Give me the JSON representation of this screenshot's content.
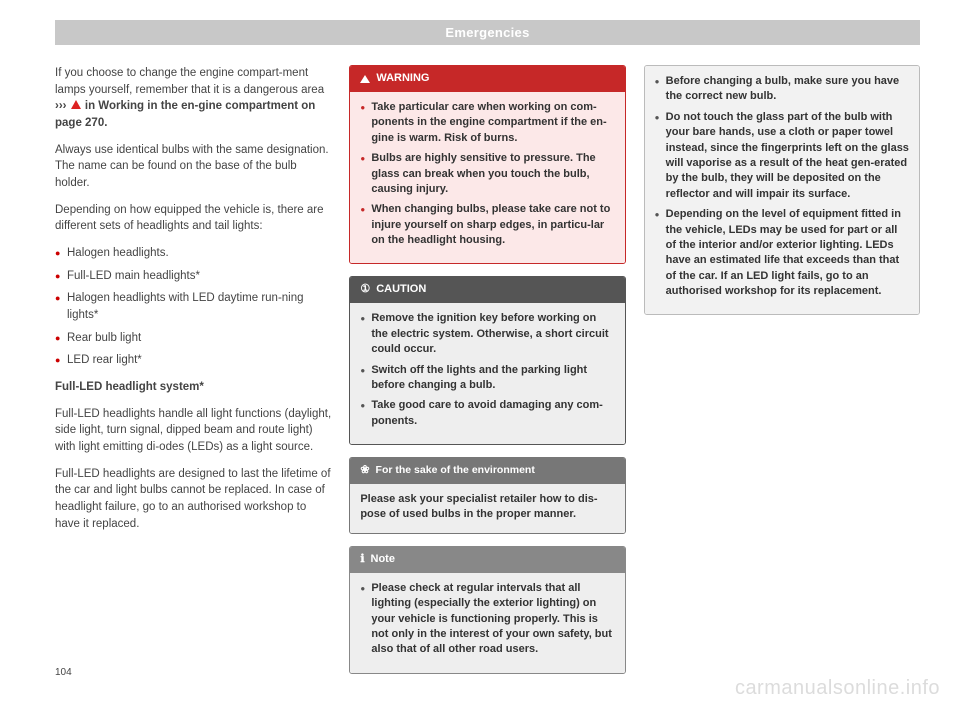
{
  "header": "Emergencies",
  "pageNumber": "104",
  "watermark": "carmanualsonline.info",
  "col1": {
    "para1a": "If you choose to change the engine compart-ment lamps yourself, remember that it is a dangerous area ",
    "para1b": "››› ",
    "para1c": " in Working in the en-gine compartment on page 270.",
    "para2": "Always use identical bulbs with the same designation. The name can be found on the base of the bulb holder.",
    "para3": "Depending on how equipped the vehicle is, there are different sets of headlights and tail lights:",
    "bullets": [
      "Halogen headlights.",
      "Full-LED main headlights*",
      "Halogen headlights with LED daytime run-ning lights*",
      "Rear bulb light",
      "LED rear light*"
    ],
    "subheading": "Full-LED headlight system*",
    "para4": "Full-LED headlights handle all light functions (daylight, side light, turn signal, dipped beam and route light) with light emitting di-odes (LEDs) as a light source.",
    "para5": "Full-LED headlights are designed to last the lifetime of the car and light bulbs cannot be replaced. In case of headlight failure, go to an authorised workshop to have it replaced."
  },
  "col2": {
    "warning": {
      "title": "WARNING",
      "items": [
        "Take particular care when working on com-ponents in the engine compartment if the en-gine is warm. Risk of burns.",
        "Bulbs are highly sensitive to pressure. The glass can break when you touch the bulb, causing injury.",
        "When changing bulbs, please take care not to injure yourself on sharp edges, in particu-lar on the headlight housing."
      ]
    },
    "caution": {
      "title": "CAUTION",
      "icon": "①",
      "items": [
        "Remove the ignition key before working on the electric system. Otherwise, a short circuit could occur.",
        "Switch off the lights and the parking light before changing a bulb.",
        "Take good care to avoid damaging any com-ponents."
      ]
    },
    "env": {
      "title": "For the sake of the environment",
      "icon": "❀",
      "text": "Please ask your specialist retailer how to dis-pose of used bulbs in the proper manner."
    },
    "note": {
      "title": "Note",
      "icon": "ℹ",
      "items": [
        "Please check at regular intervals that all lighting (especially the exterior lighting) on your vehicle is functioning properly. This is not only in the interest of your own safety, but also that of all other road users."
      ]
    }
  },
  "col3": {
    "cont": {
      "items": [
        "Before changing a bulb, make sure you have the correct new bulb.",
        "Do not touch the glass part of the bulb with your bare hands, use a cloth or paper towel instead, since the fingerprints left on the glass will vaporise as a result of the heat gen-erated by the bulb, they will be deposited on the reflector and will impair its surface.",
        "Depending on the level of equipment fitted in the vehicle, LEDs may be used for part or all of the interior and/or exterior lighting. LEDs have an estimated life that exceeds than that of the car. If an LED light fails, go to an authorised workshop for its replacement."
      ]
    }
  }
}
